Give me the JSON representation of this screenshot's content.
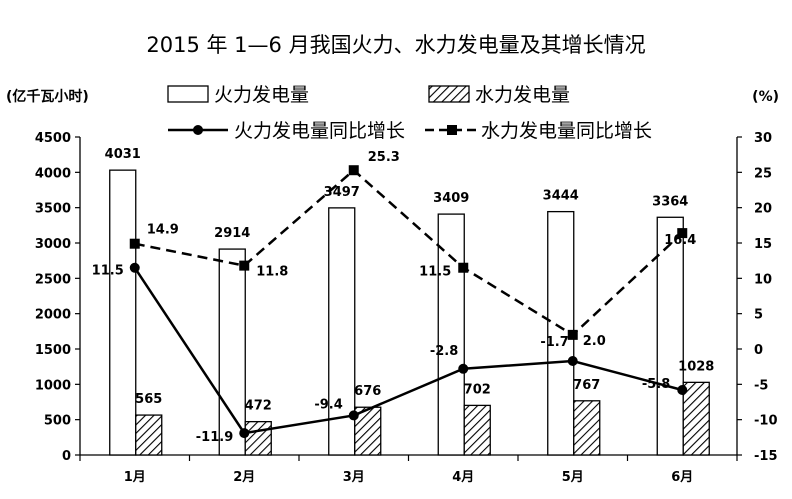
{
  "chart_data": {
    "type": "bar",
    "title": "2015 年 1—6 月我国火力、水力发电量及其增长情况",
    "left_unit": "(亿千瓦小时)",
    "right_unit": "(%)",
    "categories": [
      "1月",
      "2月",
      "3月",
      "4月",
      "5月",
      "6月"
    ],
    "left_axis": {
      "min": 0,
      "max": 4500,
      "step": 500
    },
    "right_axis": {
      "min": -15,
      "max": 30,
      "step": 5
    },
    "series": [
      {
        "name": "火力发电量",
        "kind": "bar",
        "pattern": "hollow",
        "axis": "left",
        "values": [
          4031,
          2914,
          3497,
          3409,
          3444,
          3364
        ]
      },
      {
        "name": "水力发电量",
        "kind": "bar",
        "pattern": "hatched",
        "axis": "left",
        "values": [
          565,
          472,
          676,
          702,
          767,
          1028
        ]
      },
      {
        "name": "火力发电量同比增长",
        "kind": "line",
        "style": "solid",
        "marker": "circle",
        "axis": "right",
        "values": [
          11.5,
          -11.9,
          -9.4,
          -2.8,
          -1.7,
          -5.8
        ]
      },
      {
        "name": "水力发电量同比增长",
        "kind": "line",
        "style": "dashed",
        "marker": "square",
        "axis": "right",
        "values": [
          14.9,
          11.8,
          25.3,
          11.5,
          2.0,
          16.4
        ]
      }
    ],
    "colors": {
      "ink": "#000000",
      "bar_fill": "#ffffff"
    },
    "grid": false,
    "legend": "top"
  }
}
